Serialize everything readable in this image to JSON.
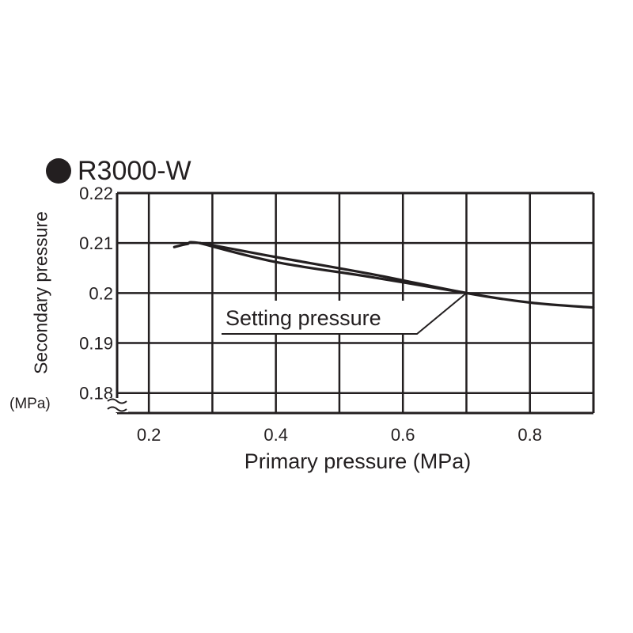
{
  "chart_data": {
    "type": "line",
    "title": "R3000-W",
    "xlabel": "Primary pressure (MPa)",
    "ylabel": "Secondary pressure",
    "yunit": "(MPa)",
    "xlim": [
      0.15,
      0.9
    ],
    "ylim": [
      0.176,
      0.22
    ],
    "xticks": [
      0.2,
      0.4,
      0.6,
      0.8
    ],
    "xtick_labels": [
      "0.2",
      "0.4",
      "0.6",
      "0.8"
    ],
    "yticks": [
      0.18,
      0.19,
      0.2,
      0.21,
      0.22
    ],
    "ytick_labels": [
      "0.18",
      "0.19",
      "0.2",
      "0.21",
      "0.22"
    ],
    "grid": true,
    "axis_break": "y",
    "annotation": {
      "text": "Setting pressure",
      "x": 0.7,
      "y": 0.2
    },
    "series": [
      {
        "values_x": [
          0.24,
          0.26,
          0.28,
          0.4,
          0.55,
          0.7,
          0.8,
          0.9
        ],
        "values_y": [
          0.2092,
          0.2098,
          0.21,
          0.2072,
          0.2038,
          0.2,
          0.1981,
          0.1971
        ]
      },
      {
        "values_x": [
          0.28,
          0.4,
          0.55,
          0.7
        ],
        "values_y": [
          0.21,
          0.2062,
          0.2032,
          0.2
        ]
      }
    ],
    "colors": {
      "ink": "#231f20",
      "background": "#ffffff"
    }
  }
}
